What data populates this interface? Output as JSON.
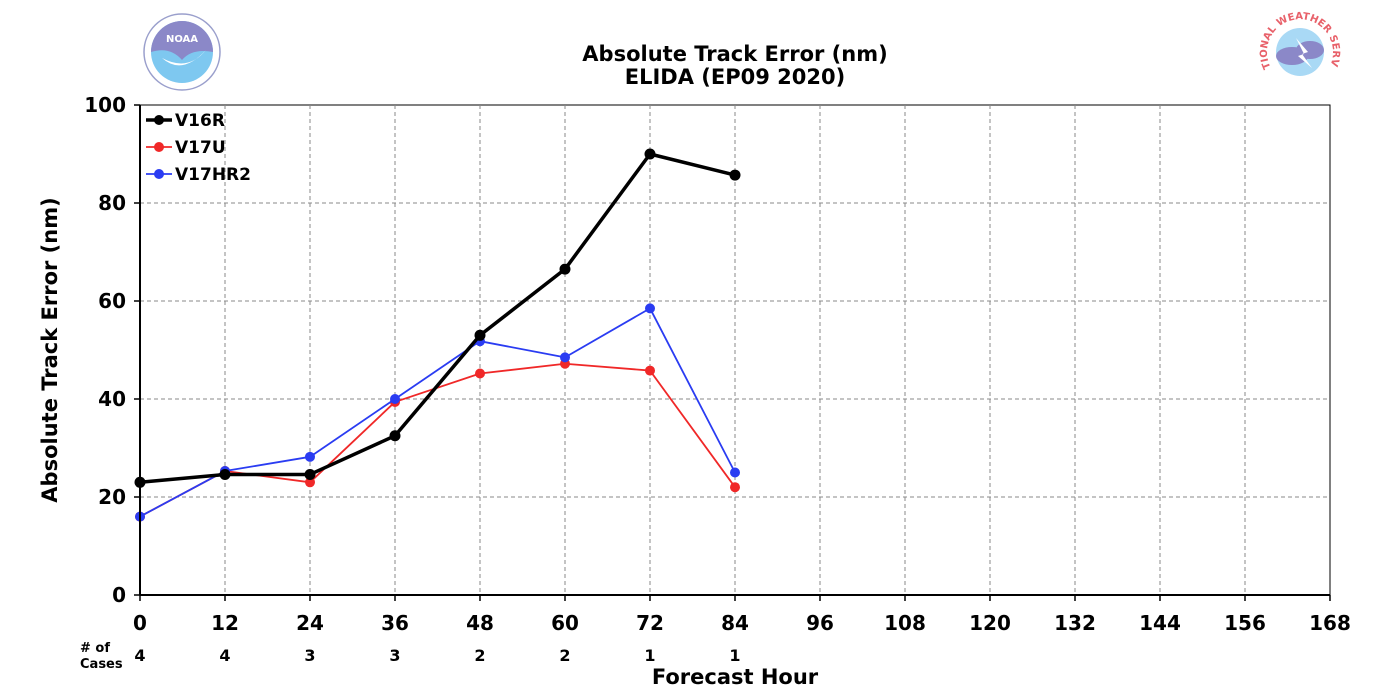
{
  "logos": {
    "left": {
      "name": "NOAA",
      "text": "NOAA"
    },
    "right": {
      "name": "National Weather Service",
      "text": "NATIONAL WEATHER SERVICE"
    }
  },
  "chart_data": {
    "type": "line",
    "title": "Absolute Track Error (nm)",
    "subtitle": "ELIDA (EP09 2020)",
    "xlabel": "Forecast Hour",
    "ylabel": "Absolute Track Error (nm)",
    "xlim": [
      0,
      168
    ],
    "ylim": [
      0,
      100
    ],
    "xticks": [
      0,
      12,
      24,
      36,
      48,
      60,
      72,
      84,
      96,
      108,
      120,
      132,
      144,
      156,
      168
    ],
    "yticks": [
      0,
      20,
      40,
      60,
      80,
      100
    ],
    "grid": true,
    "legend_position": "top-left",
    "cases_label": "# of Cases",
    "cases": [
      {
        "x": 0,
        "n": "4"
      },
      {
        "x": 12,
        "n": "4"
      },
      {
        "x": 24,
        "n": "3"
      },
      {
        "x": 36,
        "n": "3"
      },
      {
        "x": 48,
        "n": "2"
      },
      {
        "x": 60,
        "n": "2"
      },
      {
        "x": 72,
        "n": "1"
      },
      {
        "x": 84,
        "n": "1"
      }
    ],
    "series": [
      {
        "name": "V16R",
        "color": "#000000",
        "width": 3.5,
        "x": [
          0,
          12,
          24,
          36,
          48,
          60,
          72,
          84
        ],
        "values": [
          23.0,
          24.6,
          24.6,
          32.5,
          53.0,
          66.5,
          90.0,
          85.7
        ]
      },
      {
        "name": "V17U",
        "color": "#f02828",
        "width": 1.8,
        "x": [
          0,
          12,
          24,
          36,
          48,
          60,
          72,
          84
        ],
        "values": [
          16.0,
          25.3,
          23.0,
          39.4,
          45.2,
          47.2,
          45.8,
          22.0
        ]
      },
      {
        "name": "V17HR2",
        "color": "#2a3cf2",
        "width": 1.8,
        "x": [
          0,
          12,
          24,
          36,
          48,
          60,
          72,
          84
        ],
        "values": [
          16.0,
          25.3,
          28.2,
          40.0,
          51.8,
          48.5,
          58.5,
          25.0
        ]
      }
    ]
  }
}
